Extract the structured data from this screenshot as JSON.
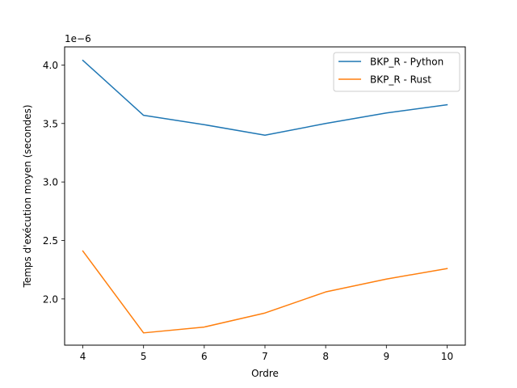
{
  "chart_data": {
    "type": "line",
    "title": "",
    "xlabel": "Ordre",
    "ylabel": "Temps d'exécution moyen (secondes)",
    "offset_label": "1e−6",
    "x": [
      4,
      5,
      6,
      7,
      8,
      9,
      10
    ],
    "xticks": [
      "4",
      "5",
      "6",
      "7",
      "8",
      "9",
      "10"
    ],
    "yticks": [
      "2.0",
      "2.5",
      "3.0",
      "3.5",
      "4.0"
    ],
    "xlim": [
      3.7,
      10.3
    ],
    "ylim": [
      1.605,
      4.155
    ],
    "grid": false,
    "legend_position": "top-right",
    "series": [
      {
        "name": "BKP_R - Python",
        "color": "#1f77b4",
        "values": [
          4.04,
          3.57,
          3.49,
          3.4,
          3.5,
          3.59,
          3.66
        ]
      },
      {
        "name": "BKP_R - Rust",
        "color": "#ff7f0e",
        "values": [
          2.41,
          1.71,
          1.76,
          1.88,
          2.06,
          2.17,
          2.26
        ]
      }
    ]
  }
}
